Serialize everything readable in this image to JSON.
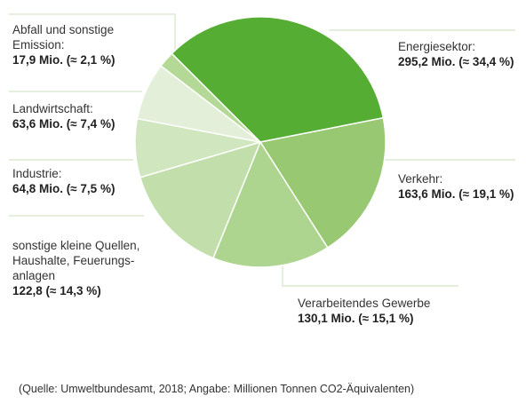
{
  "chart_data": {
    "type": "pie",
    "title": "",
    "start_angle_deg": -135,
    "direction": "clockwise",
    "slices": [
      {
        "label": "Energiesektor:",
        "value": 295.2,
        "display": "295,2 Mio. (≈ 34,4 %)",
        "color": "#56ad34"
      },
      {
        "label": "Verkehr:",
        "value": 163.6,
        "display": "163,6 Mio. (≈ 19,1 %)",
        "color": "#98c872"
      },
      {
        "label": "Verarbeitendes Gewerbe",
        "value": 130.1,
        "display": "130,1 Mio. (≈ 15,1 %)",
        "color": "#aed590"
      },
      {
        "label": "sonstige kleine Quellen,\nHaushalte, Feuerungs-\nanlagen",
        "value": 122.8,
        "display": "122,8 (≈ 14,3 %)",
        "color": "#c2dfab"
      },
      {
        "label": "Industrie:",
        "value": 64.8,
        "display": "64,8 Mio. (≈ 7,5 %)",
        "color": "#d0e6be"
      },
      {
        "label": "Landwirtschaft:",
        "value": 63.6,
        "display": "63,6 Mio. (≈ 7,4 %)",
        "color": "#e3efd8"
      },
      {
        "label": "Abfall und sonstige\nEmission:",
        "value": 17.9,
        "display": "17,9 Mio. (≈ 2,1 %)",
        "color": "#b4d896"
      }
    ],
    "leader_color": "#c9dfb8"
  },
  "source": "(Quelle: Umweltbundesamt, 2018; Angabe: Millionen Tonnen CO2-Äquivalenten)"
}
